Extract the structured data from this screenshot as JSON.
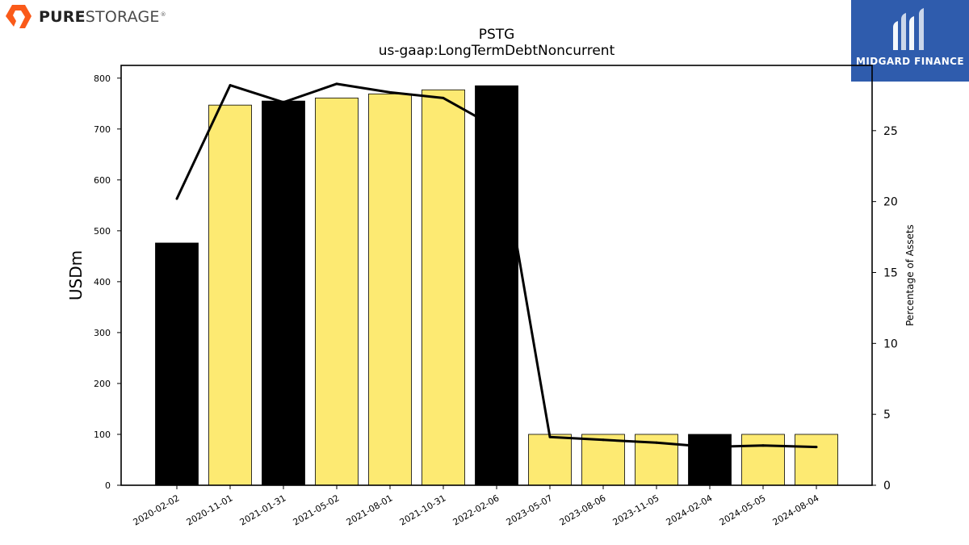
{
  "header": {
    "brand_bold": "PURE",
    "brand_light": "STORAGE",
    "brand_mark": "®",
    "sponsor_name": "MIDGARD FINANCE"
  },
  "colors": {
    "bar_yellow": "#fdea72",
    "bar_black": "#000000",
    "line": "#000000",
    "brand_orange": "#fa5a19",
    "sponsor_blue": "#2f5cad"
  },
  "chart_data": {
    "type": "bar",
    "title": "PSTG",
    "subtitle": "us-gaap:LongTermDebtNoncurrent",
    "ylabel": "USDm",
    "y2label": "Percentage of Assets",
    "categories": [
      "2020-02-02",
      "2020-11-01",
      "2021-01-31",
      "2021-05-02",
      "2021-08-01",
      "2021-10-31",
      "2022-02-06",
      "2023-05-07",
      "2023-08-06",
      "2023-11-05",
      "2024-02-04",
      "2024-05-05",
      "2024-08-04"
    ],
    "series": [
      {
        "kind": "bar",
        "axis": "left",
        "values": [
          476,
          747,
          755,
          761,
          769,
          777,
          785,
          100,
          100,
          100,
          100,
          100,
          100
        ],
        "bar_colors": [
          "black",
          "yellow",
          "black",
          "yellow",
          "yellow",
          "yellow",
          "black",
          "yellow",
          "yellow",
          "yellow",
          "black",
          "yellow",
          "yellow"
        ]
      },
      {
        "kind": "line",
        "axis": "right",
        "values": [
          20.2,
          28.2,
          27.0,
          28.3,
          27.7,
          27.3,
          25.2,
          3.4,
          3.2,
          3.0,
          2.7,
          2.8,
          2.7
        ]
      }
    ],
    "ylim": [
      0,
      825
    ],
    "yticks": [
      0,
      100,
      200,
      300,
      400,
      500,
      600,
      700,
      800
    ],
    "y2lim": [
      0,
      29.6
    ],
    "y2ticks": [
      0,
      5,
      10,
      15,
      20,
      25
    ],
    "grid": false,
    "legend": "none"
  }
}
